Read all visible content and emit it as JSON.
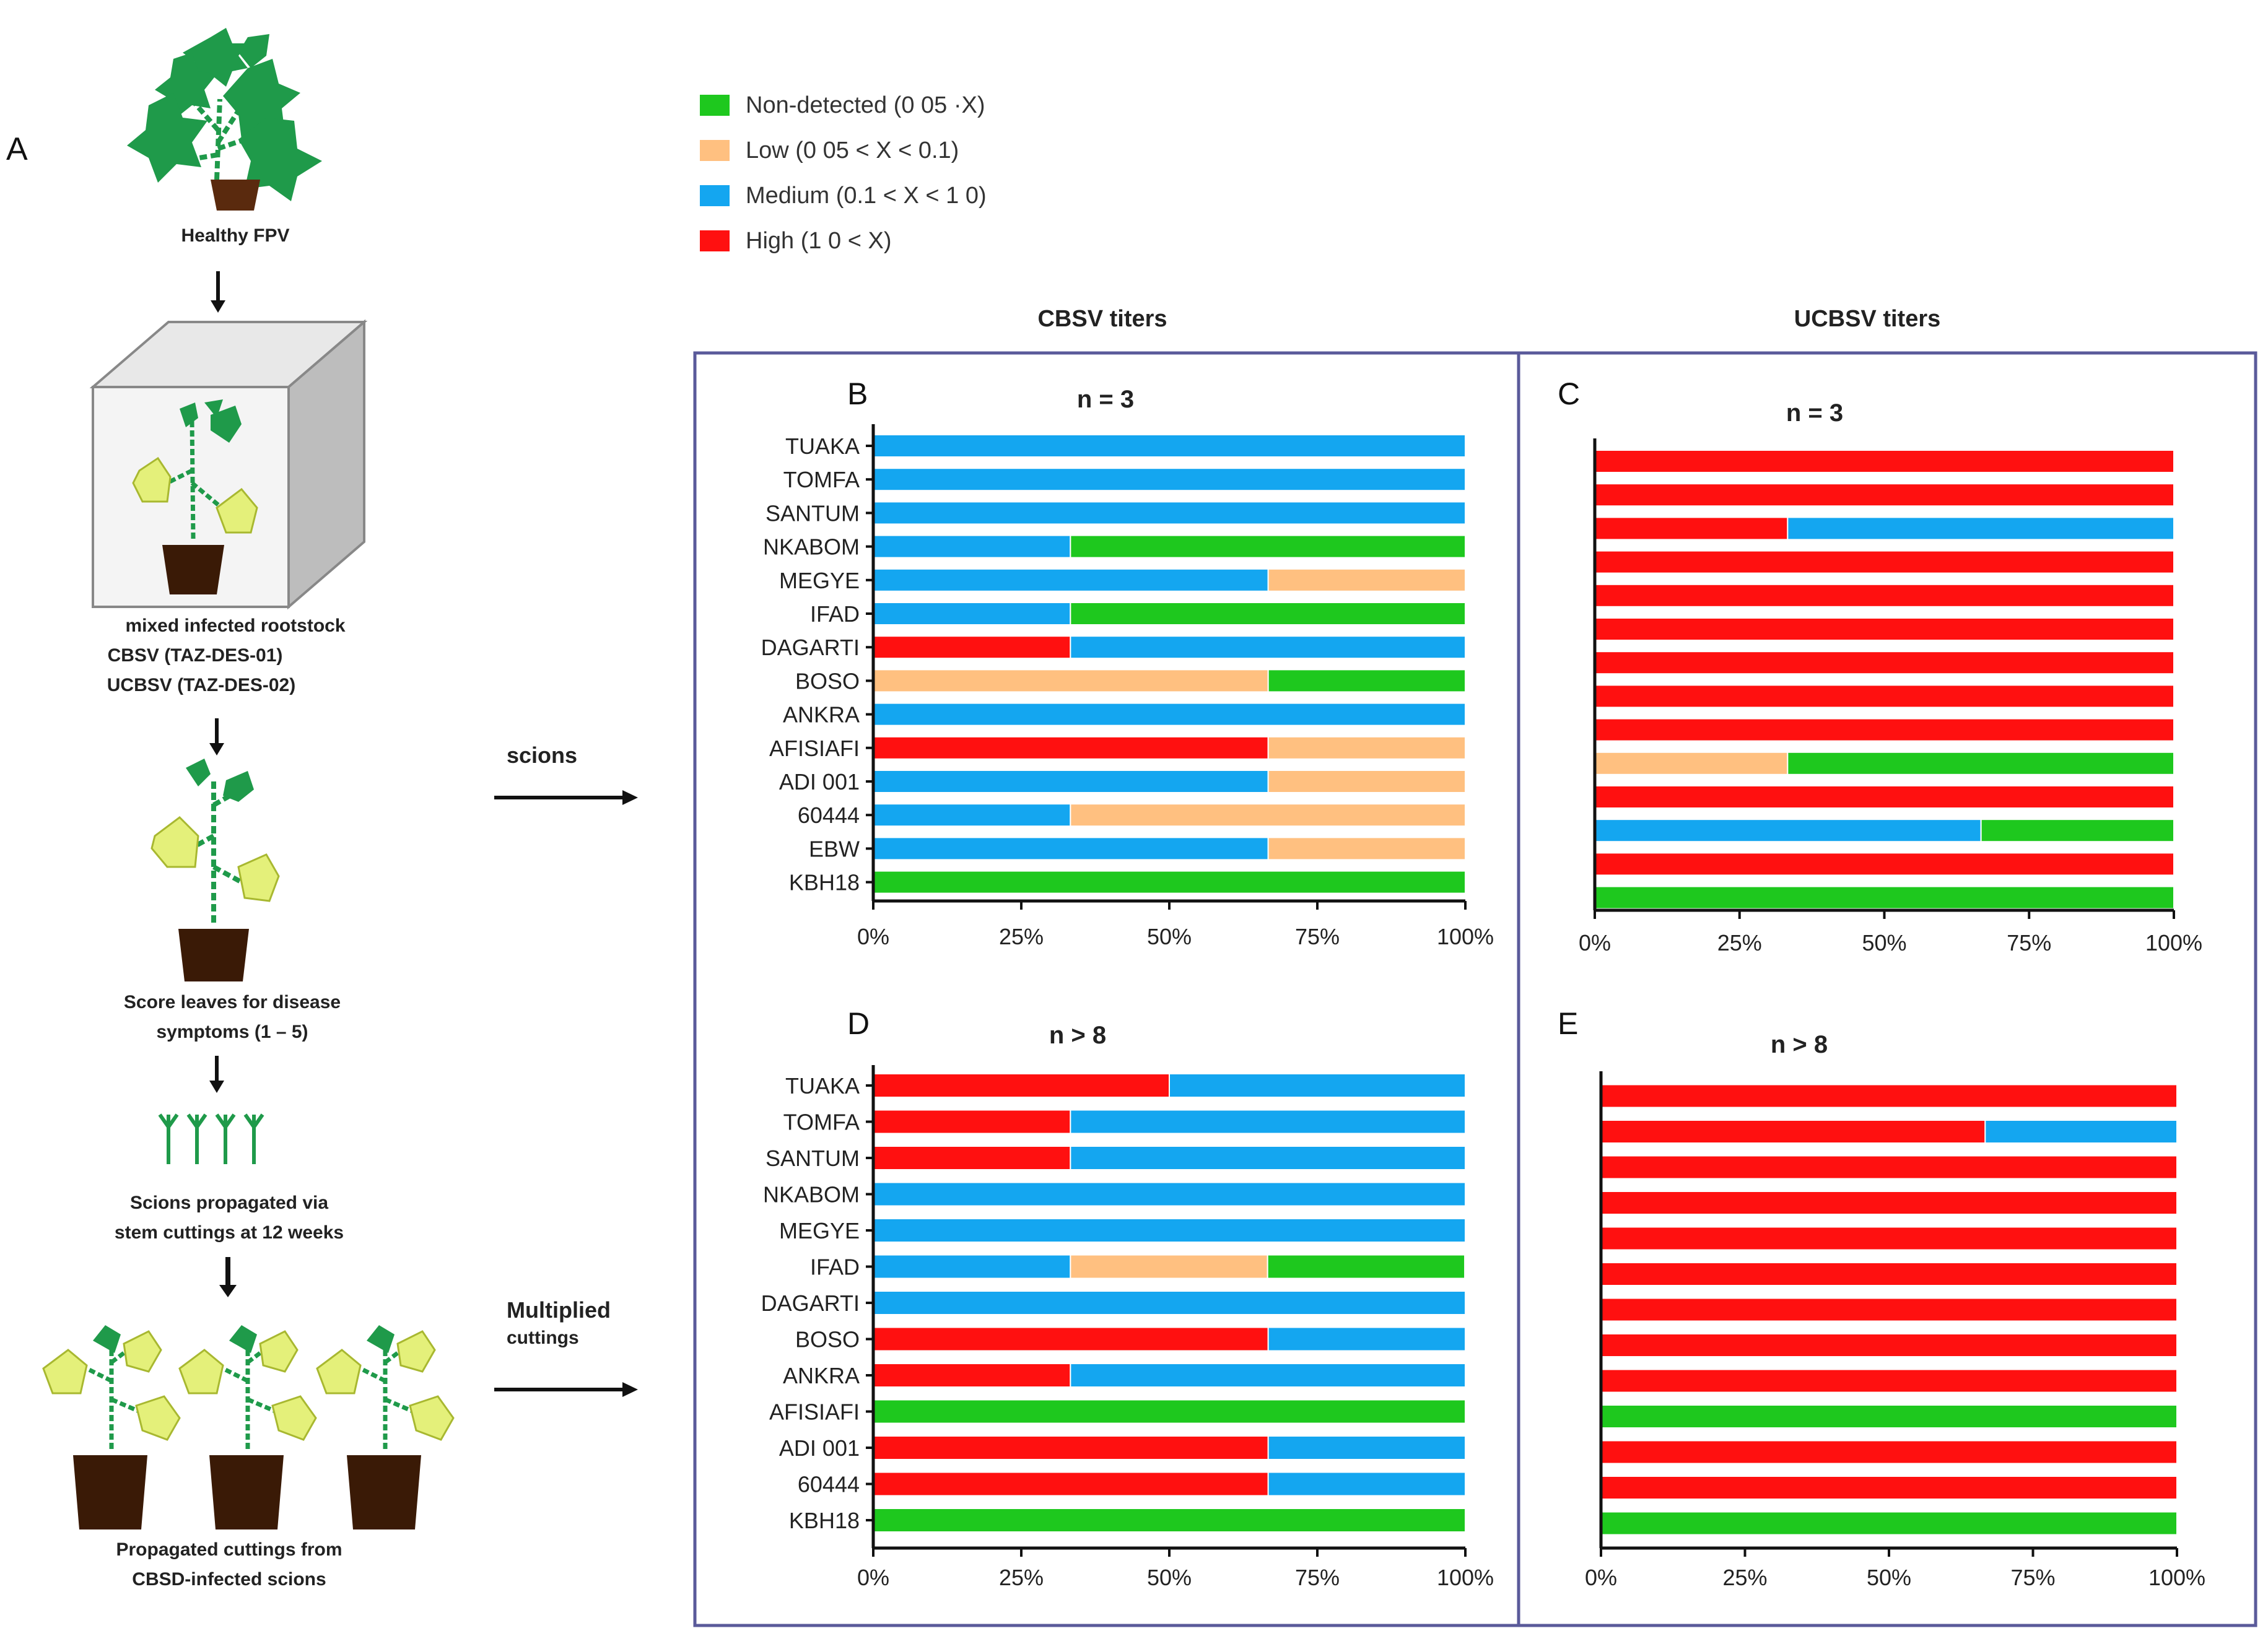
{
  "panel_letters": {
    "a": "A",
    "b": "B",
    "c": "C",
    "d": "D",
    "e": "E"
  },
  "workflow": {
    "step1": "Healthy FPV",
    "step2_lines": [
      "mixed infected  rootstock",
      "CBSV (TAZ-DES-01)",
      "UCBSV (TAZ-DES-02)"
    ],
    "step3_lines": [
      "Score leaves for  disease",
      "symptoms (1 – 5)"
    ],
    "step4_lines": [
      "Scions propagated via",
      "stem cuttings at 12 weeks"
    ],
    "step5_lines": [
      "Propagated cuttings from",
      "CBSD-infected  scions"
    ],
    "arrow1": "scions",
    "arrow2_main": "Multiplied",
    "arrow2_sub": "cuttings"
  },
  "legend": [
    {
      "label": "Non-detected (0 05  ·X)",
      "color": "#1ec81e"
    },
    {
      "label": "Low (0 05 < X < 0.1)",
      "color": "#ffc080"
    },
    {
      "label": "Medium (0.1 < X < 1 0)",
      "color": "#14a6f0"
    },
    {
      "label": "High (1 0 < X)",
      "color": "#ff1010"
    }
  ],
  "headers": {
    "cbsv": "CBSV titers",
    "ucbsv": "UCBSV titers"
  },
  "colors": {
    "none": "#1ec81e",
    "low": "#ffc080",
    "med": "#14a6f0",
    "high": "#ff1010",
    "frame": "#5a5a9a"
  },
  "chart_data": [
    {
      "id": "B",
      "type": "bar",
      "stacked": true,
      "orientation": "horizontal",
      "title": "n = 3",
      "categories": [
        "TUAKA",
        "TOMFA",
        "SANTUM",
        "NKABOM",
        "MEGYE",
        "IFAD",
        "DAGARTI",
        "BOSO",
        "ANKRA",
        "AFISIAFI",
        "ADI 001",
        "60444",
        "EBW",
        "KBH18"
      ],
      "series": [
        {
          "name": "High",
          "values": [
            0,
            0,
            0,
            0,
            0,
            0,
            33.3,
            0,
            0,
            66.7,
            0,
            0,
            0,
            0
          ]
        },
        {
          "name": "Medium",
          "values": [
            100,
            100,
            100,
            33.3,
            66.7,
            33.3,
            66.7,
            0,
            100,
            0,
            66.7,
            33.3,
            66.7,
            0
          ]
        },
        {
          "name": "Low",
          "values": [
            0,
            0,
            0,
            0,
            33.3,
            0,
            0,
            66.7,
            0,
            33.3,
            33.3,
            66.7,
            33.3,
            0
          ]
        },
        {
          "name": "Non-detected",
          "values": [
            0,
            0,
            0,
            66.7,
            0,
            66.7,
            0,
            33.3,
            0,
            0,
            0,
            0,
            0,
            100
          ]
        }
      ],
      "xticks": [
        "0%",
        "25%",
        "50%",
        "75%",
        "100%"
      ],
      "xlim": [
        0,
        100
      ]
    },
    {
      "id": "C",
      "type": "bar",
      "stacked": true,
      "orientation": "horizontal",
      "title": "n = 3",
      "categories": [
        "",
        "",
        "",
        "",
        "",
        "",
        "",
        "",
        "",
        "",
        "",
        "",
        "",
        ""
      ],
      "series": [
        {
          "name": "High",
          "values": [
            100,
            100,
            33.3,
            100,
            100,
            100,
            100,
            100,
            100,
            0,
            100,
            0,
            100,
            0
          ]
        },
        {
          "name": "Medium",
          "values": [
            0,
            0,
            66.7,
            0,
            0,
            0,
            0,
            0,
            0,
            0,
            0,
            66.7,
            0,
            0
          ]
        },
        {
          "name": "Low",
          "values": [
            0,
            0,
            0,
            0,
            0,
            0,
            0,
            0,
            0,
            33.3,
            0,
            0,
            0,
            0
          ]
        },
        {
          "name": "Non-detected",
          "values": [
            0,
            0,
            0,
            0,
            0,
            0,
            0,
            0,
            0,
            66.7,
            0,
            33.3,
            0,
            100
          ]
        }
      ],
      "xticks": [
        "0%",
        "25%",
        "50%",
        "75%",
        "100%"
      ],
      "xlim": [
        0,
        100
      ]
    },
    {
      "id": "D",
      "type": "bar",
      "stacked": true,
      "orientation": "horizontal",
      "title": "n > 8",
      "categories": [
        "TUAKA",
        "TOMFA",
        "SANTUM",
        "NKABOM",
        "MEGYE",
        "IFAD",
        "DAGARTI",
        "BOSO",
        "ANKRA",
        "AFISIAFI",
        "ADI 001",
        "60444",
        "KBH18"
      ],
      "series": [
        {
          "name": "High",
          "values": [
            50,
            33.3,
            33.3,
            0,
            0,
            0,
            0,
            66.7,
            33.3,
            0,
            66.7,
            66.7,
            0
          ]
        },
        {
          "name": "Medium",
          "values": [
            50,
            66.7,
            66.7,
            100,
            100,
            33.3,
            100,
            33.3,
            66.7,
            0,
            33.3,
            33.3,
            0
          ]
        },
        {
          "name": "Low",
          "values": [
            0,
            0,
            0,
            0,
            0,
            33.3,
            0,
            0,
            0,
            0,
            0,
            0,
            0
          ]
        },
        {
          "name": "Non-detected",
          "values": [
            0,
            0,
            0,
            0,
            0,
            33.3,
            0,
            0,
            0,
            100,
            0,
            0,
            100
          ]
        }
      ],
      "xticks": [
        "0%",
        "25%",
        "50%",
        "75%",
        "100%"
      ],
      "xlim": [
        0,
        100
      ]
    },
    {
      "id": "E",
      "type": "bar",
      "stacked": true,
      "orientation": "horizontal",
      "title": "n > 8",
      "categories": [
        "",
        "",
        "",
        "",
        "",
        "",
        "",
        "",
        "",
        "",
        "",
        "",
        ""
      ],
      "series": [
        {
          "name": "High",
          "values": [
            100,
            66.7,
            100,
            100,
            100,
            100,
            100,
            100,
            100,
            0,
            100,
            100,
            0
          ]
        },
        {
          "name": "Medium",
          "values": [
            0,
            33.3,
            0,
            0,
            0,
            0,
            0,
            0,
            0,
            0,
            0,
            0,
            0
          ]
        },
        {
          "name": "Low",
          "values": [
            0,
            0,
            0,
            0,
            0,
            0,
            0,
            0,
            0,
            0,
            0,
            0,
            0
          ]
        },
        {
          "name": "Non-detected",
          "values": [
            0,
            0,
            0,
            0,
            0,
            0,
            0,
            0,
            0,
            100,
            0,
            0,
            100
          ]
        }
      ],
      "xticks": [
        "0%",
        "25%",
        "50%",
        "75%",
        "100%"
      ],
      "xlim": [
        0,
        100
      ]
    }
  ]
}
